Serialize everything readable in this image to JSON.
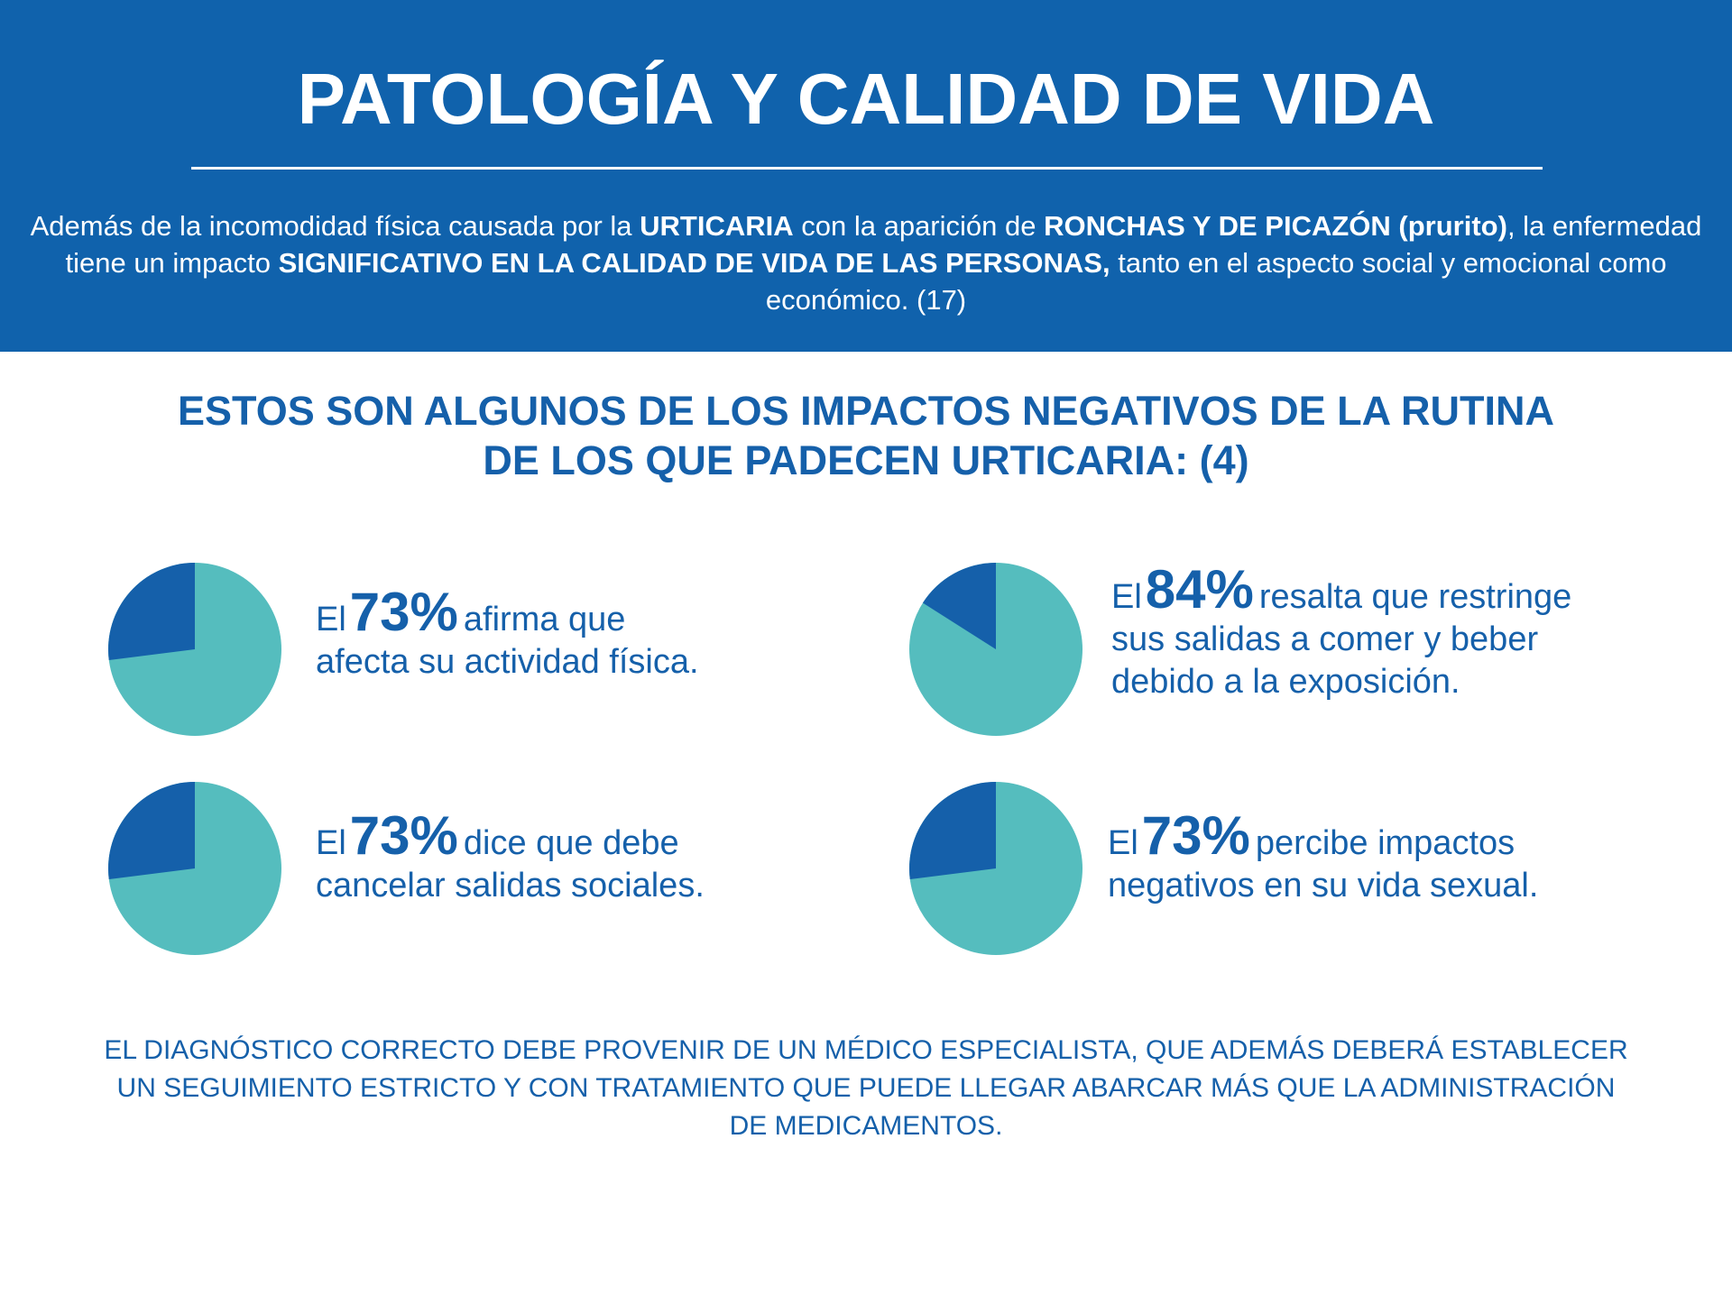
{
  "header": {
    "title": "PATOLOGÍA Y CALIDAD DE VIDA",
    "intro": [
      {
        "text": "Además de la incomodidad física causada por la ",
        "bold": false
      },
      {
        "text": "URTICARIA",
        "bold": true
      },
      {
        "text": " con la aparición de ",
        "bold": false
      },
      {
        "text": "RONCHAS Y DE PICAZÓN (prurito)",
        "bold": true
      },
      {
        "text": ", la enfermedad tiene un impacto ",
        "bold": false
      },
      {
        "text": "SIGNIFICATIVO EN LA CALIDAD DE VIDA DE LAS PERSONAS,",
        "bold": true
      },
      {
        "text": " tanto en el aspecto social y emocional como económico. (17)",
        "bold": false
      }
    ]
  },
  "subheading": {
    "line1": "ESTOS SON ALGUNOS DE LOS IMPACTOS NEGATIVOS DE LA RUTINA",
    "line2": "DE LOS QUE PADECEN URTICARIA: (4)"
  },
  "colors": {
    "banner": "#1062ac",
    "pie_dark": "#1560aa",
    "pie_light": "#55bdbe",
    "text": "#1560aa"
  },
  "chart_data": [
    {
      "type": "pie",
      "value": 73,
      "labels": [
        "73%"
      ],
      "prefix": "El",
      "pct_label": "73%",
      "line1_rest": "afirma que",
      "line2": "afecta su actividad física."
    },
    {
      "type": "pie",
      "value": 84,
      "labels": [
        "84%"
      ],
      "prefix": "El",
      "pct_label": "84%",
      "line1_rest": "resalta que restringe",
      "line2": "sus salidas a comer y beber",
      "line3": "debido a la exposición."
    },
    {
      "type": "pie",
      "value": 73,
      "labels": [
        "73%"
      ],
      "prefix": "El",
      "pct_label": "73%",
      "line1_rest": "dice que debe",
      "line2": "cancelar salidas sociales."
    },
    {
      "type": "pie",
      "value": 73,
      "labels": [
        "73%"
      ],
      "prefix": "El",
      "pct_label": "73%",
      "line1_rest": "percibe impactos",
      "line2": "negativos en su vida sexual."
    }
  ],
  "footer": {
    "line1": "EL DIAGNÓSTICO CORRECTO DEBE PROVENIR DE UN MÉDICO ESPECIALISTA, QUE ADEMÁS DEBERÁ ESTABLECER",
    "line2": "UN SEGUIMIENTO ESTRICTO Y CON TRATAMIENTO QUE PUEDE LLEGAR ABARCAR MÁS QUE LA ADMINISTRACIÓN",
    "line3": "DE MEDICAMENTOS."
  }
}
